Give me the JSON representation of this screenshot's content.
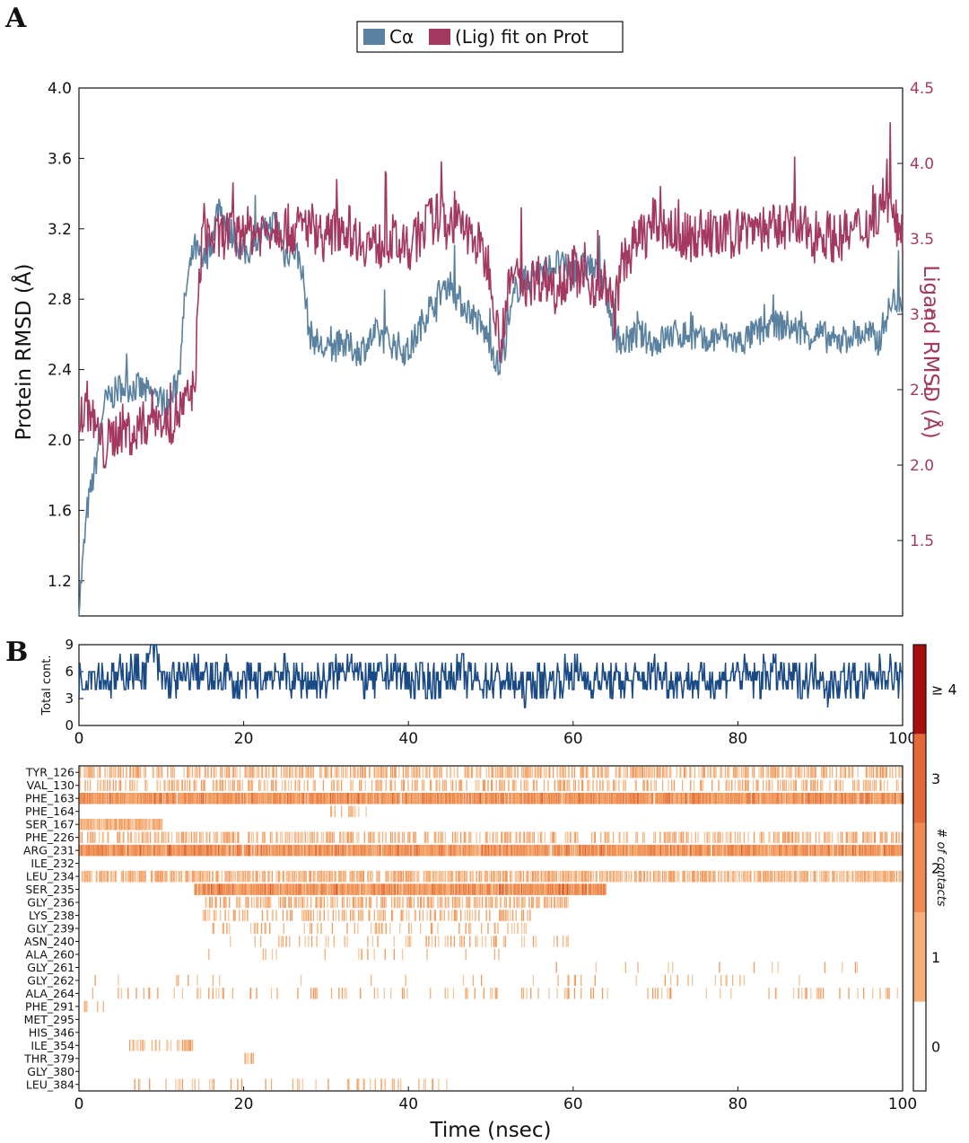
{
  "panels": {
    "a": "A",
    "b": "B"
  },
  "chart_data": [
    {
      "type": "line",
      "panel": "A",
      "legend": {
        "placement": "top-center",
        "entries": [
          "Cα",
          "(Lig) fit on Prot"
        ]
      },
      "xlim": [
        0,
        100
      ],
      "ylabel": "Protein RMSD (Å)",
      "ylim": [
        1.0,
        4.0
      ],
      "yticks": [
        "1.2",
        "1.6",
        "2.0",
        "2.4",
        "2.8",
        "3.2",
        "3.6",
        "4.0"
      ],
      "y2label": "Ligand RMSD (Å)",
      "y2ticks": [
        "1.5",
        "2.0",
        "2.5",
        "3.0",
        "3.5",
        "4.0",
        "4.5"
      ],
      "y2lim": [
        1.0,
        4.5
      ],
      "colors": {
        "ca": "#5a82a0",
        "lig": "#a33860"
      },
      "series": [
        {
          "name": "Cα",
          "axis": "left",
          "x": [
            0,
            1,
            2,
            3,
            5,
            7,
            9,
            11,
            12,
            13,
            14,
            15,
            16,
            17,
            18,
            19,
            20,
            22,
            24,
            25,
            26,
            27,
            28,
            29,
            30,
            32,
            34,
            36,
            38,
            40,
            42,
            44,
            45,
            46,
            48,
            50,
            51,
            52,
            53,
            54,
            56,
            58,
            60,
            62,
            64,
            65,
            66,
            68,
            70,
            72,
            74,
            76,
            78,
            80,
            82,
            84,
            86,
            88,
            90,
            92,
            94,
            96,
            97,
            98,
            99,
            100
          ],
          "y": [
            1.05,
            1.6,
            1.85,
            2.2,
            2.3,
            2.3,
            2.25,
            2.2,
            2.35,
            2.85,
            3.1,
            3.0,
            3.1,
            3.35,
            3.2,
            3.15,
            3.05,
            3.15,
            3.25,
            3.05,
            3.1,
            3.0,
            2.6,
            2.55,
            2.5,
            2.55,
            2.5,
            2.6,
            2.55,
            2.5,
            2.7,
            2.85,
            2.9,
            2.8,
            2.7,
            2.55,
            2.4,
            2.6,
            2.85,
            2.9,
            2.95,
            3.0,
            2.95,
            3.0,
            2.85,
            2.6,
            2.55,
            2.6,
            2.55,
            2.6,
            2.6,
            2.55,
            2.6,
            2.55,
            2.6,
            2.65,
            2.65,
            2.6,
            2.6,
            2.55,
            2.6,
            2.6,
            2.55,
            2.7,
            2.8,
            2.8
          ]
        },
        {
          "name": "(Lig) fit on Prot",
          "axis": "right",
          "x": [
            0,
            1,
            2,
            3,
            5,
            7,
            9,
            11,
            12,
            13,
            14,
            15,
            16,
            17,
            18,
            19,
            20,
            22,
            24,
            26,
            28,
            30,
            32,
            34,
            36,
            38,
            40,
            42,
            44,
            46,
            48,
            50,
            51,
            52,
            53,
            54,
            56,
            58,
            60,
            62,
            64,
            65,
            66,
            68,
            70,
            72,
            74,
            76,
            78,
            80,
            82,
            84,
            86,
            88,
            90,
            92,
            94,
            96,
            97,
            98,
            99,
            100
          ],
          "y": [
            2.3,
            2.4,
            2.25,
            2.1,
            2.25,
            2.2,
            2.35,
            2.25,
            2.35,
            2.4,
            2.5,
            3.6,
            3.5,
            3.5,
            3.55,
            3.5,
            3.55,
            3.55,
            3.6,
            3.55,
            3.6,
            3.5,
            3.6,
            3.5,
            3.45,
            3.5,
            3.4,
            3.6,
            3.65,
            3.6,
            3.5,
            3.3,
            2.8,
            3.1,
            3.3,
            3.2,
            3.25,
            3.2,
            3.3,
            3.2,
            3.2,
            3.0,
            3.35,
            3.5,
            3.6,
            3.55,
            3.5,
            3.55,
            3.5,
            3.55,
            3.6,
            3.55,
            3.6,
            3.55,
            3.55,
            3.5,
            3.55,
            3.6,
            3.7,
            3.8,
            3.6,
            3.55
          ]
        }
      ]
    },
    {
      "type": "line",
      "panel": "B-top",
      "ylabel": "Total cont.",
      "xlim": [
        0,
        100
      ],
      "ylim": [
        0,
        9
      ],
      "yticks": [
        "0",
        "3",
        "6",
        "9"
      ],
      "xticks": [
        "0",
        "20",
        "40",
        "60",
        "80",
        "100"
      ],
      "color": "#1a4a86",
      "series": [
        {
          "x": [
            0,
            2,
            4,
            6,
            8,
            9,
            10,
            12,
            14,
            16,
            18,
            19,
            20,
            22,
            24,
            26,
            28,
            30,
            32,
            33,
            34,
            36,
            38,
            40,
            42,
            44,
            46,
            48,
            50,
            52,
            54,
            56,
            58,
            60,
            62,
            64,
            65,
            66,
            68,
            70,
            72,
            74,
            76,
            78,
            80,
            82,
            84,
            86,
            88,
            90,
            91,
            92,
            94,
            96,
            98,
            100
          ],
          "y": [
            5,
            6,
            5,
            6,
            6,
            9,
            5,
            5,
            6,
            5,
            6,
            4,
            5,
            5,
            6,
            5,
            5,
            5,
            6,
            8,
            5,
            5,
            6,
            5,
            5,
            5,
            6,
            5,
            5,
            5,
            4,
            5,
            5,
            6,
            5,
            5,
            5,
            5,
            5,
            6,
            5,
            5,
            5,
            5,
            6,
            5,
            6,
            5,
            5,
            6,
            4,
            5,
            5,
            5,
            6,
            5
          ]
        }
      ]
    },
    {
      "type": "heatmap",
      "panel": "B-bottom",
      "xlabel": "Time (nsec)",
      "xlim": [
        0,
        100
      ],
      "xticks": [
        "0",
        "20",
        "40",
        "60",
        "80",
        "100"
      ],
      "colorbar": {
        "title": "# of contacts",
        "labels": [
          "0",
          "1",
          "2",
          "3",
          "≥ 4"
        ],
        "colors": [
          "#ffffff",
          "#f5b07a",
          "#ef8a55",
          "#e4683a",
          "#a50f0f"
        ]
      },
      "residues": [
        "TYR_126",
        "VAL_130",
        "PHE_163",
        "PHE_164",
        "SER_167",
        "PHE_226",
        "ARG_231",
        "ILE_232",
        "LEU_234",
        "SER_235",
        "GLY_236",
        "LYS_238",
        "GLY_239",
        "ASN_240",
        "ALA_260",
        "GLY_261",
        "GLY_262",
        "ALA_264",
        "PHE_291",
        "MET_295",
        "HIS_346",
        "ILE_354",
        "THR_379",
        "GLY_380",
        "LEU_384"
      ],
      "occupancy_ranges": [
        {
          "residue": "TYR_126",
          "start": 0,
          "end": 100,
          "density": 0.45
        },
        {
          "residue": "VAL_130",
          "start": 0,
          "end": 100,
          "density": 0.3
        },
        {
          "residue": "PHE_163",
          "start": 0,
          "end": 100,
          "density": 0.95
        },
        {
          "residue": "PHE_164",
          "start": 30,
          "end": 35,
          "density": 0.3
        },
        {
          "residue": "SER_167",
          "start": 0,
          "end": 10,
          "density": 0.8
        },
        {
          "residue": "PHE_226",
          "start": 0,
          "end": 100,
          "density": 0.35
        },
        {
          "residue": "ARG_231",
          "start": 0,
          "end": 100,
          "density": 0.95
        },
        {
          "residue": "LEU_234",
          "start": 0,
          "end": 100,
          "density": 0.6
        },
        {
          "residue": "SER_235",
          "start": 14,
          "end": 64,
          "density": 0.95
        },
        {
          "residue": "GLY_236",
          "start": 15,
          "end": 60,
          "density": 0.4
        },
        {
          "residue": "LYS_238",
          "start": 15,
          "end": 55,
          "density": 0.25
        },
        {
          "residue": "GLY_239",
          "start": 16,
          "end": 55,
          "density": 0.15
        },
        {
          "residue": "ASN_240",
          "start": 16,
          "end": 60,
          "density": 0.1
        },
        {
          "residue": "ALA_260",
          "start": 15,
          "end": 55,
          "density": 0.05
        },
        {
          "residue": "GLY_261",
          "start": 30,
          "end": 95,
          "density": 0.03
        },
        {
          "residue": "GLY_262",
          "start": 0,
          "end": 90,
          "density": 0.04
        },
        {
          "residue": "ALA_264",
          "start": 0,
          "end": 100,
          "density": 0.12
        },
        {
          "residue": "PHE_291",
          "start": 0,
          "end": 3,
          "density": 0.2
        },
        {
          "residue": "ILE_354",
          "start": 6,
          "end": 14,
          "density": 0.3
        },
        {
          "residue": "THR_379",
          "start": 20,
          "end": 22,
          "density": 0.4
        },
        {
          "residue": "LEU_384",
          "start": 6,
          "end": 45,
          "density": 0.1
        }
      ]
    }
  ]
}
